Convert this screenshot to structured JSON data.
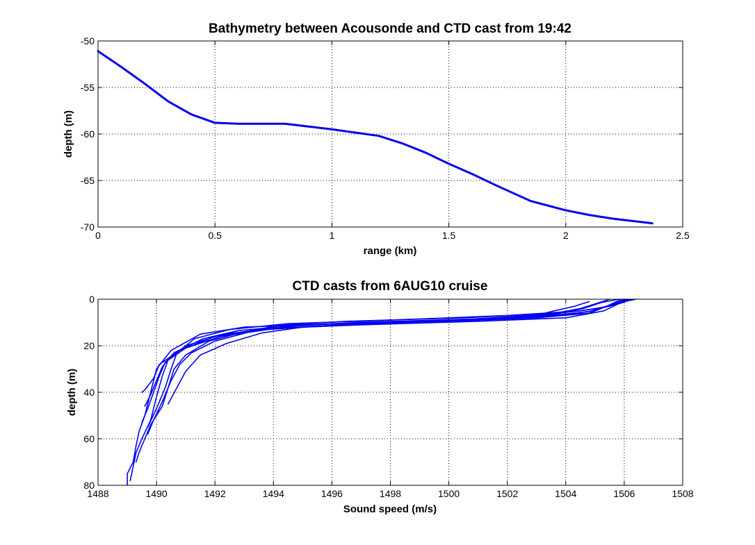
{
  "colors": {
    "line": "#0000ee",
    "background": "#ffffff",
    "axes": "#000000"
  },
  "chart_data": [
    {
      "type": "line",
      "title": "Bathymetry between Acousonde and CTD cast from 19:42",
      "xlabel": "range (km)",
      "ylabel": "depth (m)",
      "xlim": [
        0,
        2.5
      ],
      "ylim": [
        -70,
        -50
      ],
      "grid": true,
      "xticks": [
        0,
        0.5,
        1,
        1.5,
        2,
        2.5
      ],
      "yticks": [
        -70,
        -65,
        -60,
        -55,
        -50
      ],
      "xtick_labels": [
        "0",
        "0.5",
        "1",
        "1.5",
        "2",
        "2.5"
      ],
      "ytick_labels": [
        "-70",
        "-65",
        "-60",
        "-55",
        "-50"
      ],
      "series": [
        {
          "x": [
            0,
            0.1,
            0.2,
            0.3,
            0.4,
            0.5,
            0.6,
            0.8,
            1.0,
            1.2,
            1.3,
            1.4,
            1.5,
            1.6,
            1.7,
            1.85,
            2.0,
            2.1,
            2.2,
            2.37
          ],
          "y": [
            -51.1,
            -52.8,
            -54.6,
            -56.5,
            -57.9,
            -58.8,
            -58.9,
            -58.9,
            -59.5,
            -60.2,
            -61.0,
            -62.0,
            -63.2,
            -64.3,
            -65.5,
            -67.2,
            -68.2,
            -68.7,
            -69.1,
            -69.6
          ]
        }
      ]
    },
    {
      "type": "line",
      "title": "CTD casts from 6AUG10 cruise",
      "xlabel": "Sound speed (m/s)",
      "ylabel": "depth (m)",
      "xlim": [
        1488,
        1508
      ],
      "ylim": [
        0,
        80
      ],
      "y_reversed": true,
      "grid": true,
      "xticks": [
        1488,
        1490,
        1492,
        1494,
        1496,
        1498,
        1500,
        1502,
        1504,
        1506,
        1508
      ],
      "yticks": [
        0,
        20,
        40,
        60,
        80
      ],
      "xtick_labels": [
        "1488",
        "1490",
        "1492",
        "1494",
        "1496",
        "1498",
        "1500",
        "1502",
        "1504",
        "1506",
        "1508"
      ],
      "ytick_labels": [
        "0",
        "20",
        "40",
        "60",
        "80"
      ],
      "series": [
        {
          "x": [
            1506.1,
            1505.6,
            1505.0,
            1503.5,
            1500.0,
            1496.0,
            1493.0,
            1491.5,
            1490.5,
            1490.0,
            1489.8,
            1489.6,
            1489.4,
            1489.3,
            1489.2,
            1489.0,
            1489.0
          ],
          "y": [
            0,
            2,
            5,
            7,
            9,
            10.5,
            12,
            15,
            22,
            30,
            40,
            50,
            57,
            63,
            70,
            75,
            80
          ]
        },
        {
          "x": [
            1506.3,
            1505.8,
            1505.3,
            1504.0,
            1501.0,
            1497.0,
            1494.0,
            1492.3,
            1491.0,
            1490.4,
            1490.2,
            1490.0,
            1489.8,
            1489.5,
            1489.3,
            1489.2,
            1489.1
          ],
          "y": [
            0,
            2,
            5,
            8,
            9.5,
            11,
            12.5,
            15,
            20,
            26,
            33,
            42,
            52,
            60,
            66,
            72,
            78
          ]
        },
        {
          "x": [
            1505.9,
            1505.4,
            1504.8,
            1503.0,
            1499.0,
            1495.5,
            1493.5,
            1492.0,
            1490.8,
            1490.1,
            1489.9,
            1489.6,
            1489.5
          ],
          "y": [
            0,
            3,
            6,
            8,
            10,
            11.5,
            13,
            16,
            22,
            28,
            34,
            39,
            40
          ]
        },
        {
          "x": [
            1506.2,
            1505.7,
            1505.1,
            1503.8,
            1500.5,
            1496.5,
            1494.3,
            1493.0,
            1491.8,
            1491.0,
            1490.6,
            1490.4,
            1490.2,
            1489.8,
            1489.6,
            1489.4,
            1489.3
          ],
          "y": [
            0,
            2,
            4,
            6,
            8,
            9.5,
            11,
            14,
            18,
            24,
            30,
            38,
            46,
            54,
            60,
            66,
            70
          ]
        },
        {
          "x": [
            1506.4,
            1506.0,
            1505.5,
            1504.5,
            1502.0,
            1498.0,
            1494.5,
            1492.5,
            1491.3,
            1490.7,
            1490.5,
            1490.3,
            1490.0,
            1489.7
          ],
          "y": [
            0,
            1,
            3,
            5,
            7,
            9,
            10.5,
            13,
            17,
            23,
            30,
            38,
            47,
            55
          ]
        },
        {
          "x": [
            1505.5,
            1505.0,
            1504.5,
            1503.2,
            1499.5,
            1495.0,
            1492.8,
            1491.6,
            1490.6,
            1490.2,
            1490.0,
            1489.8,
            1489.6
          ],
          "y": [
            0,
            2,
            4,
            7,
            9.5,
            11,
            13.5,
            17,
            23,
            29,
            35,
            41,
            46
          ]
        },
        {
          "x": [
            1505.8,
            1505.2,
            1504.6,
            1503.6,
            1500.8,
            1496.8,
            1494.8,
            1493.2,
            1492.0,
            1491.2,
            1490.8,
            1490.5,
            1490.2,
            1489.9,
            1489.7
          ],
          "y": [
            0,
            1.5,
            4,
            6.5,
            8.5,
            10,
            11.5,
            14,
            18,
            23,
            28,
            35,
            44,
            52,
            58
          ]
        },
        {
          "x": [
            1506.0,
            1505.6,
            1504.9,
            1503.9,
            1501.5,
            1497.5,
            1495.0,
            1493.6,
            1492.4,
            1491.5,
            1491.0,
            1490.7,
            1490.4
          ],
          "y": [
            0,
            2.5,
            5,
            7,
            8.5,
            10,
            12,
            14.5,
            19,
            24,
            31,
            38,
            45
          ]
        },
        {
          "x": [
            1504.8,
            1504.3,
            1503.6,
            1502.8,
            1499.8,
            1496.2,
            1493.8,
            1492.2,
            1491.0,
            1490.3,
            1490.1,
            1489.9,
            1489.7,
            1489.5
          ],
          "y": [
            1,
            3,
            5,
            7.5,
            9.5,
            11,
            13,
            16,
            21,
            27,
            33,
            40,
            47,
            53
          ]
        }
      ]
    }
  ]
}
